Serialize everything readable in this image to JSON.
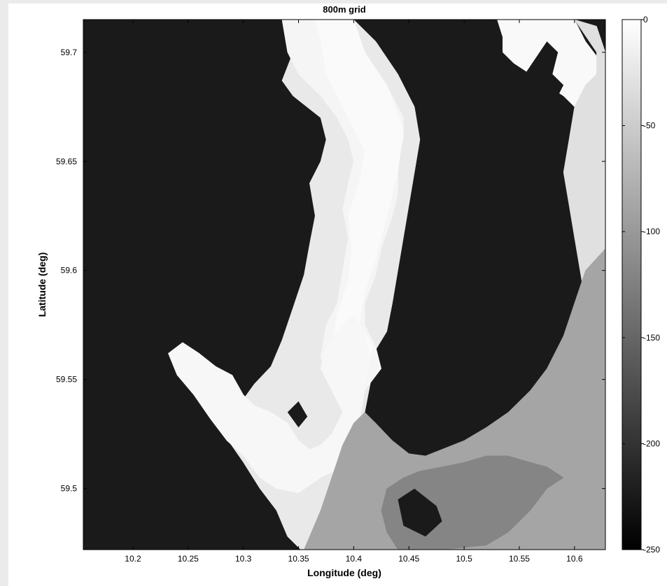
{
  "chart_data": {
    "type": "heatmap",
    "title": "800m grid",
    "xlabel": "Longitude (deg)",
    "ylabel": "Latitude (deg)",
    "xlim": [
      10.155,
      10.628
    ],
    "ylim": [
      59.472,
      59.715
    ],
    "xticks": [
      10.2,
      10.25,
      10.3,
      10.35,
      10.4,
      10.45,
      10.5,
      10.55,
      10.6
    ],
    "xtick_labels": [
      "10.2",
      "10.25",
      "10.3",
      "10.35",
      "10.4",
      "10.45",
      "10.5",
      "10.55",
      "10.6"
    ],
    "yticks": [
      59.5,
      59.55,
      59.6,
      59.65,
      59.7
    ],
    "ytick_labels": [
      "59.5",
      "59.55",
      "59.6",
      "59.65",
      "59.7"
    ],
    "colormap": "gray",
    "land_color": "#1a1a1a",
    "colorbar": {
      "min": -250,
      "max": 0,
      "ticks": [
        0,
        -50,
        -100,
        -150,
        -200,
        -250
      ],
      "tick_labels": [
        "0",
        "-50",
        "-100",
        "-150",
        "-200",
        "-250"
      ]
    },
    "water_regions": [
      {
        "name": "",
        "depth": -22,
        "polygon": [
          [
            10.34,
            59.715
          ],
          [
            10.345,
            59.7
          ],
          [
            10.335,
            59.687
          ],
          [
            10.345,
            59.68
          ],
          [
            10.37,
            59.67
          ],
          [
            10.375,
            59.66
          ],
          [
            10.37,
            59.65
          ],
          [
            10.36,
            59.64
          ],
          [
            10.365,
            59.625
          ],
          [
            10.36,
            59.612
          ],
          [
            10.355,
            59.598
          ],
          [
            10.345,
            59.583
          ],
          [
            10.335,
            59.568
          ],
          [
            10.325,
            59.556
          ],
          [
            10.31,
            59.548
          ],
          [
            10.3,
            59.541
          ],
          [
            10.29,
            59.552
          ],
          [
            10.275,
            59.555
          ],
          [
            10.26,
            59.562
          ],
          [
            10.245,
            59.567
          ],
          [
            10.232,
            59.562
          ],
          [
            10.24,
            59.552
          ],
          [
            10.255,
            59.545
          ],
          [
            10.268,
            59.535
          ],
          [
            10.285,
            59.523
          ],
          [
            10.3,
            59.512
          ],
          [
            10.315,
            59.5
          ],
          [
            10.33,
            59.49
          ],
          [
            10.34,
            59.478
          ],
          [
            10.352,
            59.472
          ],
          [
            10.38,
            59.472
          ],
          [
            10.39,
            59.485
          ],
          [
            10.385,
            59.497
          ],
          [
            10.392,
            59.51
          ],
          [
            10.403,
            59.52
          ],
          [
            10.41,
            59.535
          ],
          [
            10.415,
            59.548
          ],
          [
            10.418,
            59.562
          ],
          [
            10.43,
            59.572
          ],
          [
            10.435,
            59.585
          ],
          [
            10.44,
            59.6
          ],
          [
            10.445,
            59.615
          ],
          [
            10.45,
            59.63
          ],
          [
            10.455,
            59.645
          ],
          [
            10.46,
            59.66
          ],
          [
            10.455,
            59.675
          ],
          [
            10.44,
            59.69
          ],
          [
            10.42,
            59.705
          ],
          [
            10.4,
            59.715
          ]
        ]
      },
      {
        "name": "",
        "depth": -10,
        "polygon": [
          [
            10.335,
            59.715
          ],
          [
            10.4,
            59.715
          ],
          [
            10.41,
            59.7
          ],
          [
            10.42,
            59.69
          ],
          [
            10.43,
            59.685
          ],
          [
            10.445,
            59.67
          ],
          [
            10.445,
            59.66
          ],
          [
            10.44,
            59.65
          ],
          [
            10.44,
            59.635
          ],
          [
            10.435,
            59.625
          ],
          [
            10.425,
            59.61
          ],
          [
            10.42,
            59.598
          ],
          [
            10.41,
            59.585
          ],
          [
            10.41,
            59.575
          ],
          [
            10.42,
            59.565
          ],
          [
            10.425,
            59.555
          ],
          [
            10.41,
            59.545
          ],
          [
            10.402,
            59.535
          ],
          [
            10.398,
            59.525
          ],
          [
            10.39,
            59.535
          ],
          [
            10.38,
            59.548
          ],
          [
            10.37,
            59.56
          ],
          [
            10.375,
            59.575
          ],
          [
            10.385,
            59.585
          ],
          [
            10.39,
            59.6
          ],
          [
            10.395,
            59.615
          ],
          [
            10.39,
            59.628
          ],
          [
            10.395,
            59.64
          ],
          [
            10.4,
            59.65
          ],
          [
            10.395,
            59.66
          ],
          [
            10.385,
            59.67
          ],
          [
            10.37,
            59.68
          ],
          [
            10.35,
            59.69
          ],
          [
            10.34,
            59.7
          ]
        ]
      },
      {
        "name": "",
        "depth": -5,
        "polygon": [
          [
            10.365,
            59.715
          ],
          [
            10.4,
            59.715
          ],
          [
            10.41,
            59.7
          ],
          [
            10.43,
            59.685
          ],
          [
            10.445,
            59.665
          ],
          [
            10.44,
            59.645
          ],
          [
            10.43,
            59.625
          ],
          [
            10.42,
            59.605
          ],
          [
            10.41,
            59.59
          ],
          [
            10.405,
            59.575
          ],
          [
            10.418,
            59.565
          ],
          [
            10.41,
            59.555
          ],
          [
            10.4,
            59.545
          ],
          [
            10.39,
            59.555
          ],
          [
            10.38,
            59.565
          ],
          [
            10.385,
            59.58
          ],
          [
            10.395,
            59.595
          ],
          [
            10.398,
            59.61
          ],
          [
            10.395,
            59.625
          ],
          [
            10.405,
            59.64
          ],
          [
            10.41,
            59.655
          ],
          [
            10.4,
            59.665
          ],
          [
            10.39,
            59.675
          ],
          [
            10.375,
            59.69
          ],
          [
            10.37,
            59.705
          ]
        ]
      },
      {
        "name": "",
        "depth": -8,
        "polygon": [
          [
            10.232,
            59.562
          ],
          [
            10.245,
            59.567
          ],
          [
            10.26,
            59.562
          ],
          [
            10.275,
            59.556
          ],
          [
            10.29,
            59.552
          ],
          [
            10.3,
            59.543
          ],
          [
            10.31,
            59.538
          ],
          [
            10.325,
            59.535
          ],
          [
            10.34,
            59.53
          ],
          [
            10.35,
            59.522
          ],
          [
            10.36,
            59.518
          ],
          [
            10.37,
            59.52
          ],
          [
            10.38,
            59.525
          ],
          [
            10.39,
            59.535
          ],
          [
            10.38,
            59.545
          ],
          [
            10.37,
            59.555
          ],
          [
            10.375,
            59.565
          ],
          [
            10.39,
            59.575
          ],
          [
            10.4,
            59.58
          ],
          [
            10.41,
            59.57
          ],
          [
            10.415,
            59.56
          ],
          [
            10.41,
            59.545
          ],
          [
            10.405,
            59.53
          ],
          [
            10.398,
            59.518
          ],
          [
            10.39,
            59.51
          ],
          [
            10.37,
            59.505
          ],
          [
            10.35,
            59.498
          ],
          [
            10.33,
            59.5
          ],
          [
            10.315,
            59.505
          ],
          [
            10.3,
            59.515
          ],
          [
            10.285,
            59.522
          ],
          [
            10.27,
            59.532
          ],
          [
            10.255,
            59.543
          ],
          [
            10.24,
            59.552
          ]
        ]
      },
      {
        "name": "",
        "depth": -6,
        "polygon": [
          [
            10.53,
            59.715
          ],
          [
            10.6,
            59.715
          ],
          [
            10.61,
            59.705
          ],
          [
            10.625,
            59.695
          ],
          [
            10.628,
            59.68
          ],
          [
            10.628,
            59.66
          ],
          [
            10.62,
            59.665
          ],
          [
            10.61,
            59.67
          ],
          [
            10.6,
            59.675
          ],
          [
            10.59,
            59.68
          ],
          [
            10.575,
            59.685
          ],
          [
            10.56,
            59.69
          ],
          [
            10.545,
            59.695
          ],
          [
            10.535,
            59.7
          ],
          [
            10.535,
            59.707
          ]
        ]
      },
      {
        "name": "",
        "depth": -30,
        "polygon": [
          [
            10.6,
            59.715
          ],
          [
            10.62,
            59.712
          ],
          [
            10.628,
            59.7
          ],
          [
            10.628,
            59.555
          ],
          [
            10.62,
            59.57
          ],
          [
            10.61,
            59.585
          ],
          [
            10.605,
            59.6
          ],
          [
            10.6,
            59.615
          ],
          [
            10.595,
            59.63
          ],
          [
            10.59,
            59.645
          ],
          [
            10.595,
            59.66
          ],
          [
            10.6,
            59.675
          ],
          [
            10.61,
            59.685
          ],
          [
            10.62,
            59.69
          ],
          [
            10.62,
            59.7
          ]
        ]
      },
      {
        "name": "",
        "depth": -88,
        "polygon": [
          [
            10.628,
            59.61
          ],
          [
            10.61,
            59.6
          ],
          [
            10.6,
            59.585
          ],
          [
            10.59,
            59.57
          ],
          [
            10.575,
            59.555
          ],
          [
            10.56,
            59.545
          ],
          [
            10.54,
            59.535
          ],
          [
            10.52,
            59.528
          ],
          [
            10.5,
            59.522
          ],
          [
            10.48,
            59.518
          ],
          [
            10.465,
            59.515
          ],
          [
            10.45,
            59.516
          ],
          [
            10.435,
            59.522
          ],
          [
            10.42,
            59.53
          ],
          [
            10.41,
            59.535
          ],
          [
            10.4,
            59.53
          ],
          [
            10.39,
            59.52
          ],
          [
            10.38,
            59.505
          ],
          [
            10.37,
            59.49
          ],
          [
            10.36,
            59.478
          ],
          [
            10.355,
            59.472
          ],
          [
            10.628,
            59.472
          ]
        ]
      },
      {
        "name": "",
        "depth": -120,
        "polygon": [
          [
            10.59,
            59.505
          ],
          [
            10.575,
            59.5
          ],
          [
            10.56,
            59.49
          ],
          [
            10.54,
            59.48
          ],
          [
            10.52,
            59.474
          ],
          [
            10.48,
            59.472
          ],
          [
            10.44,
            59.472
          ],
          [
            10.43,
            59.48
          ],
          [
            10.425,
            59.49
          ],
          [
            10.43,
            59.5
          ],
          [
            10.445,
            59.505
          ],
          [
            10.46,
            59.508
          ],
          [
            10.48,
            59.51
          ],
          [
            10.5,
            59.512
          ],
          [
            10.52,
            59.515
          ],
          [
            10.54,
            59.515
          ],
          [
            10.56,
            59.512
          ],
          [
            10.575,
            59.51
          ]
        ]
      }
    ],
    "land_patches": [
      {
        "name": "",
        "polygon": [
          [
            10.555,
            59.69
          ],
          [
            10.575,
            59.705
          ],
          [
            10.585,
            59.7
          ],
          [
            10.58,
            59.69
          ],
          [
            10.59,
            59.685
          ],
          [
            10.585,
            59.68
          ],
          [
            10.57,
            59.675
          ],
          [
            10.56,
            59.68
          ]
        ]
      },
      {
        "name": "",
        "polygon": [
          [
            10.44,
            59.495
          ],
          [
            10.455,
            59.5
          ],
          [
            10.475,
            59.492
          ],
          [
            10.48,
            59.485
          ],
          [
            10.465,
            59.478
          ],
          [
            10.445,
            59.483
          ]
        ]
      },
      {
        "name": "",
        "polygon": [
          [
            10.34,
            59.535
          ],
          [
            10.35,
            59.54
          ],
          [
            10.358,
            59.533
          ],
          [
            10.35,
            59.528
          ]
        ]
      }
    ]
  }
}
